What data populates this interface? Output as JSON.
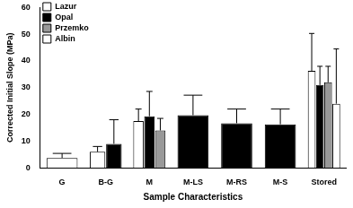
{
  "chart_data": {
    "type": "bar",
    "x_label": "Sample Characteristics",
    "y_label": "Corrected Initial Slope (MPa)",
    "categories": [
      "G",
      "B-G",
      "M",
      "M-LS",
      "M-RS",
      "M-S",
      "Stored"
    ],
    "series": [
      {
        "name": "Lazur",
        "color": "#ffffff",
        "values": [
          3.7,
          6,
          17.5,
          null,
          null,
          null,
          36.3
        ],
        "errors": [
          1.7,
          2,
          4.5,
          null,
          null,
          null,
          14
        ]
      },
      {
        "name": "Opal",
        "color": "#000000",
        "values": [
          null,
          9,
          19.3,
          19.7,
          16.7,
          16.3,
          31
        ],
        "errors": [
          null,
          9,
          9.3,
          7.5,
          5.3,
          5.7,
          7
        ]
      },
      {
        "name": "Przemko",
        "color": "#999999",
        "values": [
          null,
          null,
          14,
          null,
          null,
          null,
          32
        ],
        "errors": [
          null,
          null,
          4.5,
          null,
          null,
          null,
          6
        ]
      },
      {
        "name": "Albin",
        "color": "#ffffff",
        "values": [
          null,
          null,
          null,
          null,
          null,
          null,
          24
        ],
        "errors": [
          null,
          null,
          null,
          null,
          null,
          null,
          20.5
        ]
      }
    ],
    "ylim": [
      0,
      60
    ],
    "yticks": [
      0,
      10,
      20,
      30,
      40,
      50,
      60
    ],
    "grid": false,
    "legend": "top-left"
  }
}
